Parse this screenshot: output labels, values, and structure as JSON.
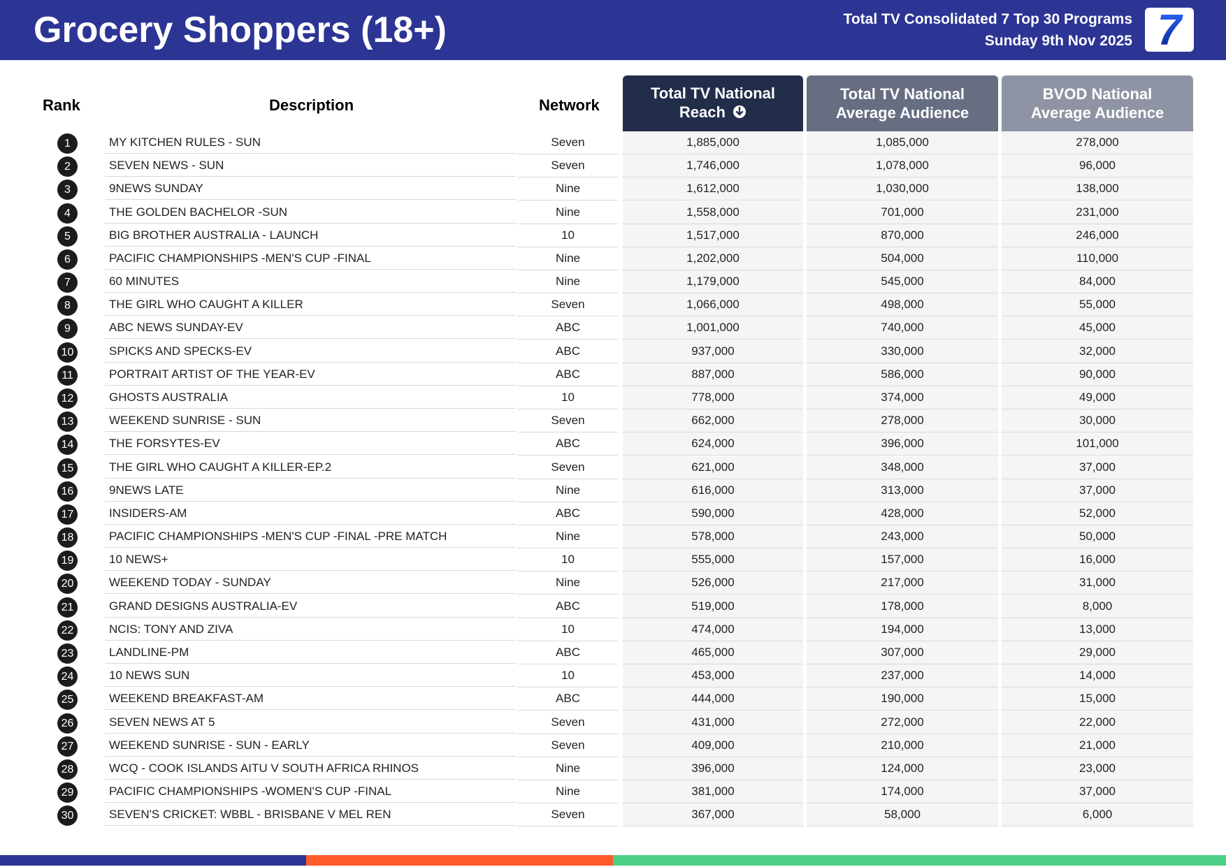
{
  "header": {
    "title": "Grocery Shoppers (18+)",
    "subtitle_line1": "Total TV Consolidated 7 Top 30 Programs",
    "subtitle_line2": "Sunday 9th Nov 2025",
    "logo_text": "7",
    "background_color": "#2c3494"
  },
  "table": {
    "columns": {
      "rank": "Rank",
      "description": "Description",
      "network": "Network",
      "reach_line1": "Total TV National",
      "reach_line2": "Reach",
      "avg_line1": "Total TV National",
      "avg_line2": "Average Audience",
      "bvod_line1": "BVOD National",
      "bvod_line2": "Average Audience"
    },
    "sort_icon": "arrow-down-circle-icon",
    "rows": [
      {
        "rank": "1",
        "description": "MY KITCHEN RULES - SUN",
        "network": "Seven",
        "reach": "1,885,000",
        "avg": "1,085,000",
        "bvod": "278,000"
      },
      {
        "rank": "2",
        "description": "SEVEN NEWS - SUN",
        "network": "Seven",
        "reach": "1,746,000",
        "avg": "1,078,000",
        "bvod": "96,000"
      },
      {
        "rank": "3",
        "description": "9NEWS SUNDAY",
        "network": "Nine",
        "reach": "1,612,000",
        "avg": "1,030,000",
        "bvod": "138,000"
      },
      {
        "rank": "4",
        "description": "THE GOLDEN BACHELOR -SUN",
        "network": "Nine",
        "reach": "1,558,000",
        "avg": "701,000",
        "bvod": "231,000"
      },
      {
        "rank": "5",
        "description": "BIG BROTHER AUSTRALIA - LAUNCH",
        "network": "10",
        "reach": "1,517,000",
        "avg": "870,000",
        "bvod": "246,000"
      },
      {
        "rank": "6",
        "description": "PACIFIC CHAMPIONSHIPS -MEN'S CUP -FINAL",
        "network": "Nine",
        "reach": "1,202,000",
        "avg": "504,000",
        "bvod": "110,000"
      },
      {
        "rank": "7",
        "description": "60 MINUTES",
        "network": "Nine",
        "reach": "1,179,000",
        "avg": "545,000",
        "bvod": "84,000"
      },
      {
        "rank": "8",
        "description": "THE GIRL WHO CAUGHT A KILLER",
        "network": "Seven",
        "reach": "1,066,000",
        "avg": "498,000",
        "bvod": "55,000"
      },
      {
        "rank": "9",
        "description": "ABC NEWS SUNDAY-EV",
        "network": "ABC",
        "reach": "1,001,000",
        "avg": "740,000",
        "bvod": "45,000"
      },
      {
        "rank": "10",
        "description": "SPICKS AND SPECKS-EV",
        "network": "ABC",
        "reach": "937,000",
        "avg": "330,000",
        "bvod": "32,000"
      },
      {
        "rank": "11",
        "description": "PORTRAIT ARTIST OF THE YEAR-EV",
        "network": "ABC",
        "reach": "887,000",
        "avg": "586,000",
        "bvod": "90,000"
      },
      {
        "rank": "12",
        "description": "GHOSTS AUSTRALIA",
        "network": "10",
        "reach": "778,000",
        "avg": "374,000",
        "bvod": "49,000"
      },
      {
        "rank": "13",
        "description": "WEEKEND SUNRISE - SUN",
        "network": "Seven",
        "reach": "662,000",
        "avg": "278,000",
        "bvod": "30,000"
      },
      {
        "rank": "14",
        "description": "THE FORSYTES-EV",
        "network": "ABC",
        "reach": "624,000",
        "avg": "396,000",
        "bvod": "101,000"
      },
      {
        "rank": "15",
        "description": "THE GIRL WHO CAUGHT A KILLER-EP.2",
        "network": "Seven",
        "reach": "621,000",
        "avg": "348,000",
        "bvod": "37,000"
      },
      {
        "rank": "16",
        "description": "9NEWS LATE",
        "network": "Nine",
        "reach": "616,000",
        "avg": "313,000",
        "bvod": "37,000"
      },
      {
        "rank": "17",
        "description": "INSIDERS-AM",
        "network": "ABC",
        "reach": "590,000",
        "avg": "428,000",
        "bvod": "52,000"
      },
      {
        "rank": "18",
        "description": "PACIFIC CHAMPIONSHIPS -MEN'S CUP -FINAL -PRE MATCH",
        "network": "Nine",
        "reach": "578,000",
        "avg": "243,000",
        "bvod": "50,000"
      },
      {
        "rank": "19",
        "description": "10 NEWS+",
        "network": "10",
        "reach": "555,000",
        "avg": "157,000",
        "bvod": "16,000"
      },
      {
        "rank": "20",
        "description": "WEEKEND TODAY - SUNDAY",
        "network": "Nine",
        "reach": "526,000",
        "avg": "217,000",
        "bvod": "31,000"
      },
      {
        "rank": "21",
        "description": "GRAND DESIGNS AUSTRALIA-EV",
        "network": "ABC",
        "reach": "519,000",
        "avg": "178,000",
        "bvod": "8,000"
      },
      {
        "rank": "22",
        "description": "NCIS: TONY AND ZIVA",
        "network": "10",
        "reach": "474,000",
        "avg": "194,000",
        "bvod": "13,000"
      },
      {
        "rank": "23",
        "description": "LANDLINE-PM",
        "network": "ABC",
        "reach": "465,000",
        "avg": "307,000",
        "bvod": "29,000"
      },
      {
        "rank": "24",
        "description": "10 NEWS SUN",
        "network": "10",
        "reach": "453,000",
        "avg": "237,000",
        "bvod": "14,000"
      },
      {
        "rank": "25",
        "description": "WEEKEND BREAKFAST-AM",
        "network": "ABC",
        "reach": "444,000",
        "avg": "190,000",
        "bvod": "15,000"
      },
      {
        "rank": "26",
        "description": "SEVEN NEWS AT 5",
        "network": "Seven",
        "reach": "431,000",
        "avg": "272,000",
        "bvod": "22,000"
      },
      {
        "rank": "27",
        "description": "WEEKEND SUNRISE - SUN - EARLY",
        "network": "Seven",
        "reach": "409,000",
        "avg": "210,000",
        "bvod": "21,000"
      },
      {
        "rank": "28",
        "description": "WCQ - COOK ISLANDS AITU V SOUTH AFRICA RHINOS",
        "network": "Nine",
        "reach": "396,000",
        "avg": "124,000",
        "bvod": "23,000"
      },
      {
        "rank": "29",
        "description": "PACIFIC CHAMPIONSHIPS -WOMEN'S CUP -FINAL",
        "network": "Nine",
        "reach": "381,000",
        "avg": "174,000",
        "bvod": "37,000"
      },
      {
        "rank": "30",
        "description": "SEVEN'S CRICKET: WBBL - BRISBANE V MEL REN",
        "network": "Seven",
        "reach": "367,000",
        "avg": "58,000",
        "bvod": "6,000"
      }
    ]
  },
  "colors": {
    "header_reach": "#222d4a",
    "header_avg": "#676e82",
    "header_bvod": "#8e94a4",
    "footer_blue": "#2c3494",
    "footer_orange": "#ff5a2a",
    "footer_green": "#4ccf86"
  }
}
